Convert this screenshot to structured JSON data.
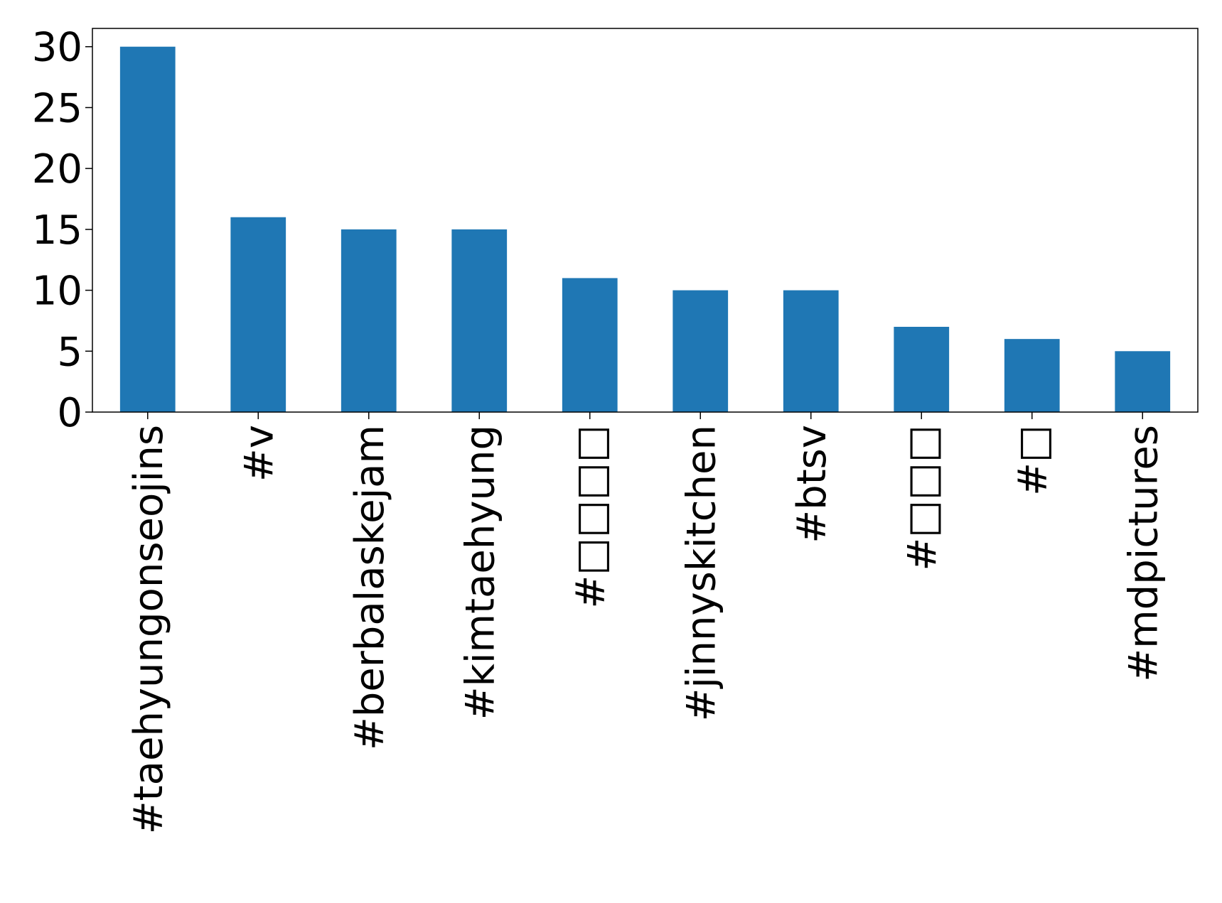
{
  "chart_data": {
    "type": "bar",
    "title": "",
    "xlabel": "",
    "ylabel": "",
    "categories": [
      "#taehyungonseojins",
      "#v",
      "#berbalaskejam",
      "#kimtaehyung",
      "#□□□□",
      "#jinnyskitchen",
      "#btsv",
      "#□□□",
      "#□",
      "#mdpictures"
    ],
    "values": [
      30,
      16,
      15,
      15,
      11,
      10,
      10,
      7,
      6,
      5
    ],
    "ylim": [
      0,
      31.5
    ],
    "yticks": [
      0,
      5,
      10,
      15,
      20,
      25,
      30
    ],
    "bar_color": "#1f77b4",
    "grid": false,
    "legend": "none"
  }
}
